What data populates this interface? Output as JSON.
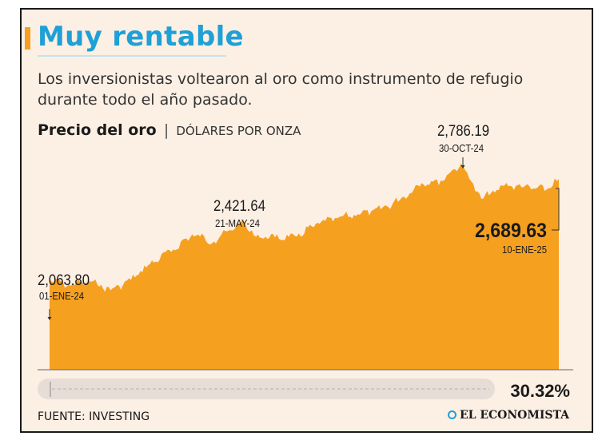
{
  "header": {
    "title": "Muy rentable",
    "subtitle": "Los inversionistas voltearon al oro como instrumento de refugio durante todo el año pasado."
  },
  "chart_header": {
    "title": "Precio del oro",
    "separator": "|",
    "unit": "DÓLARES POR ONZA"
  },
  "footer": {
    "source": "FUENTE: INVESTING",
    "brand": "EL ECONOMISTA"
  },
  "colors": {
    "area": "#f5a01f",
    "background": "#fcefe4",
    "accent": "#1fa0d6",
    "text": "#1a1a1a"
  },
  "chart_data": {
    "type": "area",
    "title": "Precio del oro",
    "ylabel": "DÓLARES POR ONZA",
    "xlim": [
      "2024-01-01",
      "2025-01-10"
    ],
    "ylim": [
      1500,
      2900
    ],
    "grid": false,
    "x": [
      "2024-01-01",
      "2024-01-15",
      "2024-02-01",
      "2024-02-15",
      "2024-03-01",
      "2024-03-15",
      "2024-04-01",
      "2024-04-15",
      "2024-05-01",
      "2024-05-21",
      "2024-06-01",
      "2024-06-15",
      "2024-07-01",
      "2024-07-15",
      "2024-08-01",
      "2024-08-15",
      "2024-09-01",
      "2024-09-15",
      "2024-10-01",
      "2024-10-15",
      "2024-10-30",
      "2024-11-14",
      "2024-12-01",
      "2024-12-15",
      "2025-01-01",
      "2025-01-10"
    ],
    "values": [
      2063.8,
      2030,
      2050,
      1995,
      2060,
      2160,
      2250,
      2345,
      2300,
      2421.64,
      2330,
      2325,
      2330,
      2410,
      2450,
      2470,
      2500,
      2560,
      2665,
      2680,
      2786.19,
      2565,
      2650,
      2640,
      2625,
      2689.63
    ],
    "annotations": [
      {
        "value": "2,063.80",
        "date": "01-ENE-24",
        "x": "2024-01-01"
      },
      {
        "value": "2,421.64",
        "date": "21-MAY-24",
        "x": "2024-05-21"
      },
      {
        "value": "2,786.19",
        "date": "30-OCT-24",
        "x": "2024-10-30"
      },
      {
        "value": "2,689.63",
        "date": "10-ENE-25",
        "x": "2025-01-10",
        "emphasis": true
      }
    ],
    "change_label": "30.32%"
  }
}
